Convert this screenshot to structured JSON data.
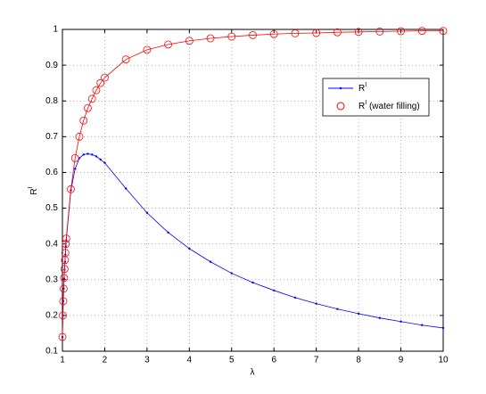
{
  "chart_data": {
    "type": "line",
    "xlabel": "λ",
    "ylabel": "R",
    "ylabel_sup": "I",
    "x": [
      1.0,
      1.01,
      1.02,
      1.03,
      1.04,
      1.05,
      1.06,
      1.07,
      1.08,
      1.09,
      1.2,
      1.3,
      1.4,
      1.5,
      1.6,
      1.7,
      1.8,
      1.9,
      2.0,
      2.5,
      3.0,
      3.5,
      4.0,
      4.5,
      5.0,
      5.5,
      6.0,
      6.5,
      7.0,
      7.5,
      8.0,
      8.5,
      9.0,
      9.5,
      10.0
    ],
    "series": [
      {
        "name": "R",
        "name_sup": "I",
        "color": "#0000ff",
        "marker": "dot",
        "values": [
          0.14,
          0.2,
          0.24,
          0.275,
          0.303,
          0.328,
          0.35,
          0.37,
          0.393,
          0.41,
          0.55,
          0.61,
          0.64,
          0.65,
          0.652,
          0.65,
          0.645,
          0.636,
          0.627,
          0.555,
          0.487,
          0.432,
          0.387,
          0.35,
          0.318,
          0.292,
          0.27,
          0.25,
          0.233,
          0.218,
          0.205,
          0.193,
          0.183,
          0.173,
          0.165
        ]
      },
      {
        "name": "R",
        "name_sup": "I",
        "name_suffix": " (water filling)",
        "color": "#ff0000",
        "marker": "circle",
        "values": [
          0.14,
          0.2,
          0.24,
          0.275,
          0.305,
          0.33,
          0.355,
          0.375,
          0.4,
          0.415,
          0.553,
          0.64,
          0.7,
          0.745,
          0.78,
          0.806,
          0.83,
          0.85,
          0.865,
          0.916,
          0.943,
          0.958,
          0.968,
          0.975,
          0.98,
          0.984,
          0.987,
          0.989,
          0.99,
          0.992,
          0.993,
          0.994,
          0.995,
          0.996,
          0.996
        ]
      }
    ],
    "xlim": [
      1,
      10
    ],
    "xticks": [
      1,
      2,
      3,
      4,
      5,
      6,
      7,
      8,
      9,
      10
    ],
    "ylim": [
      0.1,
      1
    ],
    "yticks": [
      0.1,
      0.2,
      0.3,
      0.4,
      0.5,
      0.6,
      0.7,
      0.8,
      0.9,
      1
    ],
    "grid": true,
    "legend": "upper right"
  }
}
